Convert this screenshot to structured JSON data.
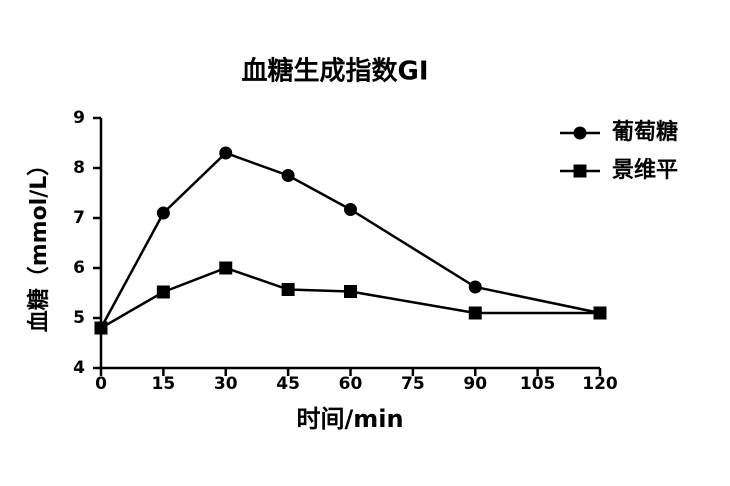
{
  "chart_data": {
    "type": "line",
    "title": "血糖生成指数GI",
    "x_label": "时间/min",
    "y_label": "血糖（mmol/L）",
    "x": [
      0,
      15,
      30,
      45,
      60,
      90,
      120
    ],
    "series": [
      {
        "name": "葡萄糖",
        "color": "#000000",
        "marker": "circle",
        "values": [
          4.8,
          7.1,
          8.3,
          7.85,
          7.17,
          5.62,
          5.1
        ]
      },
      {
        "name": "景维平",
        "color": "#000000",
        "marker": "square",
        "values": [
          4.8,
          5.52,
          6.0,
          5.57,
          5.53,
          5.1,
          5.1
        ]
      }
    ],
    "xlim": [
      0,
      120
    ],
    "xticks": [
      0,
      15,
      30,
      45,
      60,
      75,
      90,
      105,
      120
    ],
    "ylim": [
      4,
      9
    ],
    "yticks": [
      4,
      5,
      6,
      7,
      8,
      9
    ],
    "grid": false,
    "legend": "top-right"
  }
}
